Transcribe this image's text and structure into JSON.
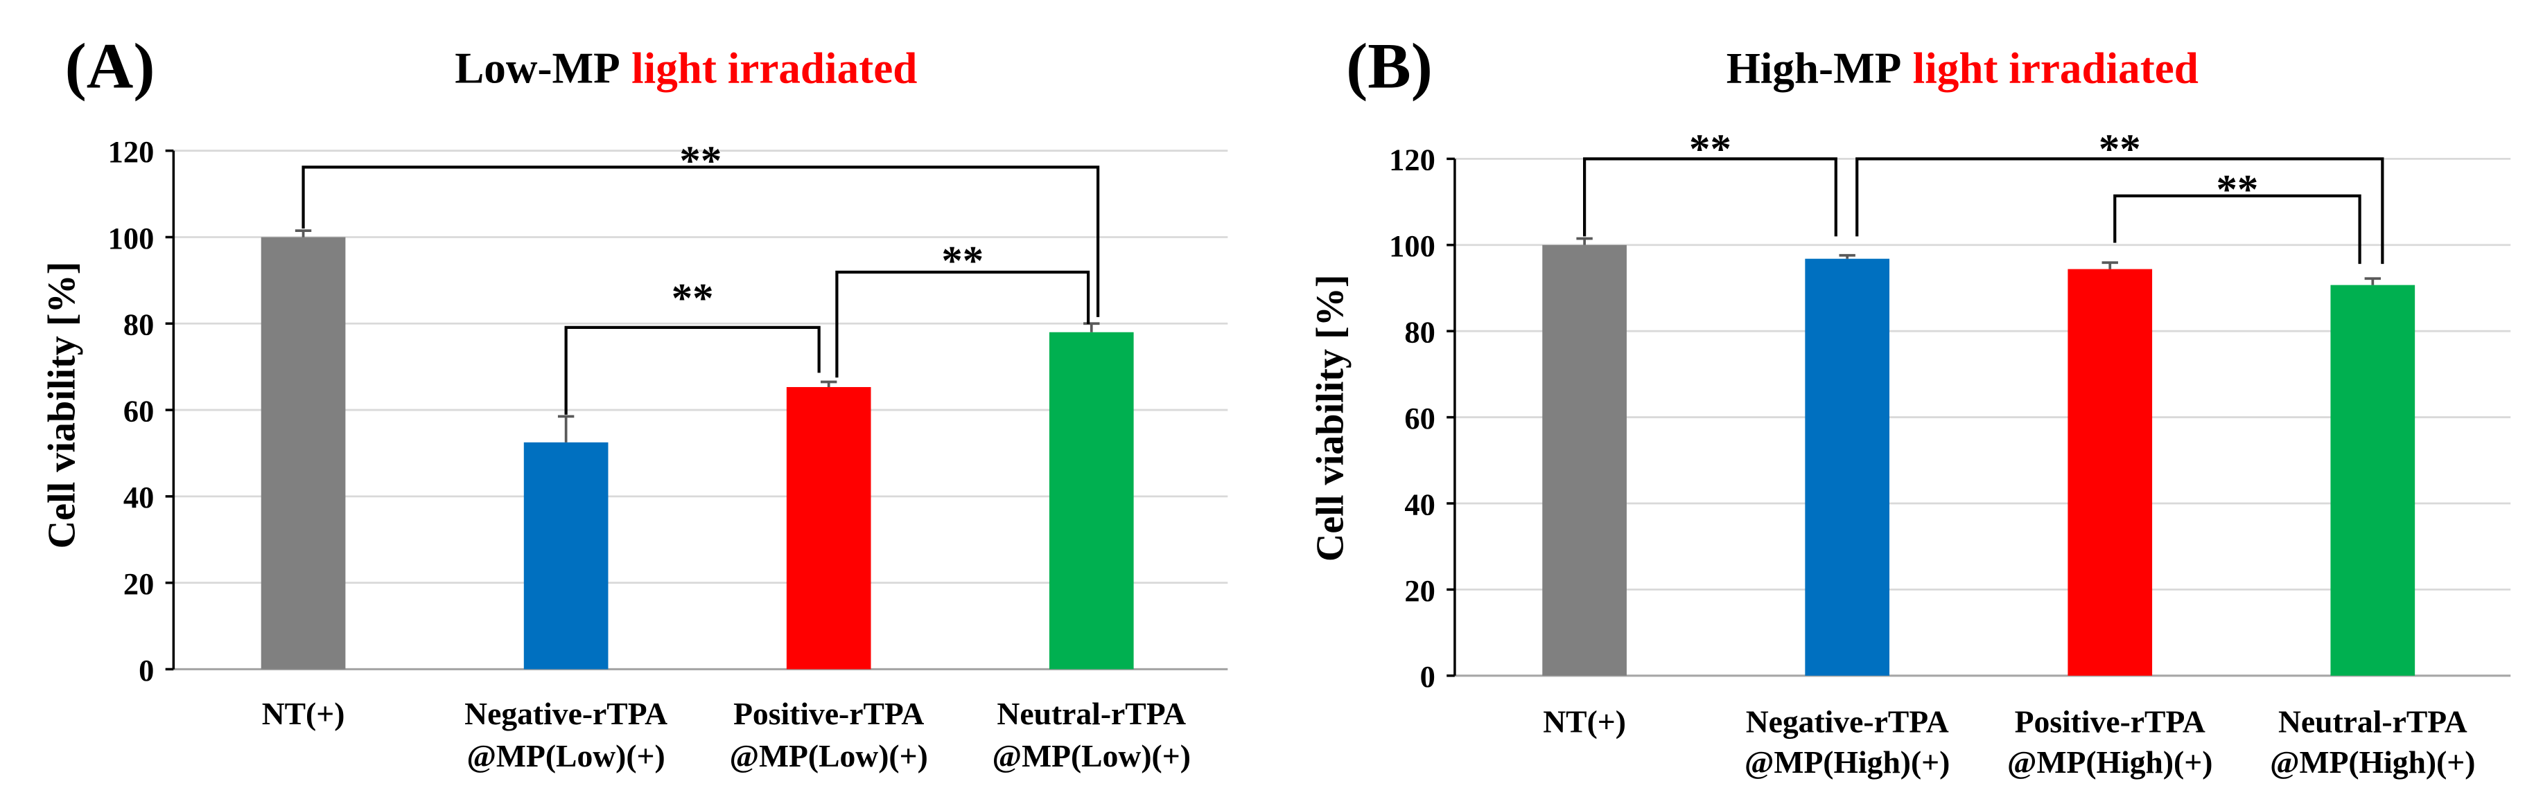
{
  "chart_data": [
    {
      "type": "bar",
      "panel_label": "(A)",
      "title_parts": [
        {
          "text": "Low-MP",
          "color": "#000000"
        },
        {
          "text": "light irradiated",
          "color": "#FF0000"
        }
      ],
      "ylabel": "Cell viability [%]",
      "ylim": [
        0,
        120
      ],
      "yticks": [
        0,
        20,
        40,
        60,
        80,
        100,
        120
      ],
      "grid": true,
      "categories": [
        [
          "NT(+)"
        ],
        [
          "Negative-rTPA",
          "@MP(Low)(+)"
        ],
        [
          "Positive-rTPA",
          "@MP(Low)(+)"
        ],
        [
          "Neutral-rTPA",
          "@MP(Low)(+)"
        ]
      ],
      "values": [
        100,
        52.5,
        65.3,
        78
      ],
      "errors": [
        1.5,
        6,
        1.2,
        2
      ],
      "colors": [
        "#808080",
        "#0070C0",
        "#FF0000",
        "#00B050"
      ],
      "significance": [
        {
          "pair": [
            0,
            3
          ],
          "label": "**"
        },
        {
          "pair": [
            2,
            3
          ],
          "label": "**"
        },
        {
          "pair": [
            1,
            2
          ],
          "label": "**"
        }
      ]
    },
    {
      "type": "bar",
      "panel_label": "(B)",
      "title_parts": [
        {
          "text": "High-MP",
          "color": "#000000"
        },
        {
          "text": "light irradiated",
          "color": "#FF0000"
        }
      ],
      "ylabel": "Cell viability [%]",
      "ylim": [
        0,
        120
      ],
      "yticks": [
        0,
        20,
        40,
        60,
        80,
        100,
        120
      ],
      "grid": true,
      "categories": [
        [
          "NT(+)"
        ],
        [
          "Negative-rTPA",
          "@MP(High)(+)"
        ],
        [
          "Positive-rTPA",
          "@MP(High)(+)"
        ],
        [
          "Neutral-rTPA",
          "@MP(High)(+)"
        ]
      ],
      "values": [
        100,
        96.8,
        94.4,
        90.7
      ],
      "errors": [
        1.5,
        0.8,
        1.5,
        1.5
      ],
      "colors": [
        "#808080",
        "#0070C0",
        "#FF0000",
        "#00B050"
      ],
      "significance": [
        {
          "pair": [
            0,
            1
          ],
          "label": "**"
        },
        {
          "pair": [
            1,
            3
          ],
          "label": "**"
        },
        {
          "pair": [
            2,
            3
          ],
          "label": "**"
        }
      ]
    }
  ]
}
